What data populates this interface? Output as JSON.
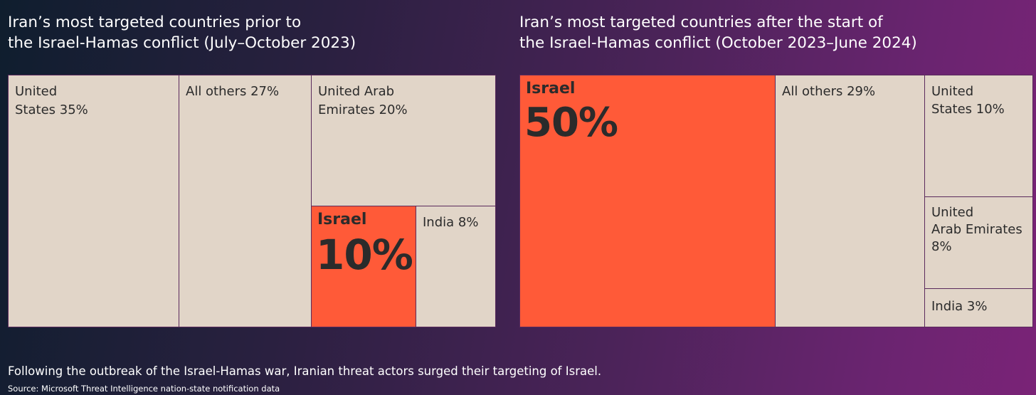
{
  "chart_data": [
    {
      "type": "treemap",
      "title": "Iran’s most targeted countries prior to\nthe Israel-Hamas conflict (July–October 2023)",
      "items": [
        {
          "name": "United States",
          "value": 35,
          "label": "United\nStates 35%"
        },
        {
          "name": "All others",
          "value": 27,
          "label": "All others 27%"
        },
        {
          "name": "United Arab Emirates",
          "value": 20,
          "label": "United Arab\nEmirates 20%"
        },
        {
          "name": "Israel",
          "value": 10,
          "label_name": "Israel",
          "label_value": "10%",
          "highlight": true
        },
        {
          "name": "India",
          "value": 8,
          "label": "India 8%"
        }
      ]
    },
    {
      "type": "treemap",
      "title": "Iran’s most targeted countries after the start of\nthe Israel-Hamas conflict (October 2023–June 2024)",
      "items": [
        {
          "name": "Israel",
          "value": 50,
          "label_name": "Israel",
          "label_value": "50%",
          "highlight": true
        },
        {
          "name": "All others",
          "value": 29,
          "label": "All others 29%"
        },
        {
          "name": "United States",
          "value": 10,
          "label": "United\nStates 10%"
        },
        {
          "name": "United Arab Emirates",
          "value": 8,
          "label": "United\nArab Emirates\n8%"
        },
        {
          "name": "India",
          "value": 3,
          "label": "India 3%"
        }
      ]
    }
  ],
  "caption": "Following the outbreak of the Israel-Hamas war, Iranian threat actors surged their targeting of Israel.",
  "source": "Source: Microsoft Threat Intelligence nation-state notification data",
  "colors": {
    "highlight": "#ff5a38",
    "cell": "#e1d5c8",
    "border": "#5a2a5c"
  }
}
